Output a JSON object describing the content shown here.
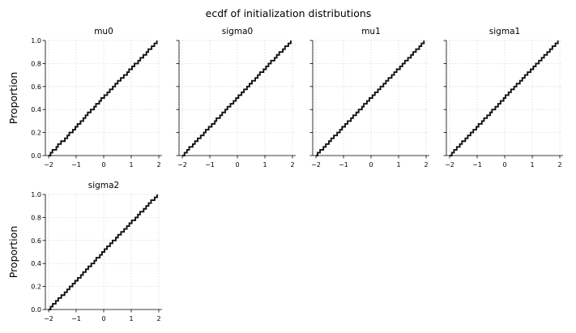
{
  "title": "ecdf of initialization distributions",
  "chart_data": {
    "type": "line",
    "title": "ecdf of initialization distributions",
    "ylabel": "Proportion",
    "xlabel": "",
    "xlim": [
      -2,
      2
    ],
    "ylim": [
      0,
      1
    ],
    "x_ticks": [
      "−2",
      "−1",
      "0",
      "1",
      "2"
    ],
    "y_ticks": [
      "0.0",
      "0.2",
      "0.4",
      "0.6",
      "0.8",
      "1.0"
    ],
    "grid": true,
    "series_color": "#111111",
    "grid_color": "#cfcfcf",
    "panels": [
      {
        "title": "mu0",
        "show_ylabel": true,
        "show_yticklabels": true,
        "x": [
          -1.93,
          -1.86,
          -1.72,
          -1.66,
          -1.55,
          -1.41,
          -1.32,
          -1.25,
          -1.12,
          -1.03,
          -0.95,
          -0.84,
          -0.74,
          -0.66,
          -0.58,
          -0.47,
          -0.35,
          -0.28,
          -0.16,
          -0.09,
          0.02,
          0.13,
          0.22,
          0.33,
          0.42,
          0.51,
          0.62,
          0.73,
          0.85,
          0.92,
          1.03,
          1.12,
          1.25,
          1.33,
          1.44,
          1.55,
          1.62,
          1.74,
          1.84,
          1.93
        ],
        "y": [
          0.025,
          0.05,
          0.075,
          0.1,
          0.125,
          0.15,
          0.175,
          0.2,
          0.225,
          0.25,
          0.275,
          0.3,
          0.325,
          0.35,
          0.375,
          0.4,
          0.425,
          0.45,
          0.475,
          0.5,
          0.525,
          0.55,
          0.575,
          0.6,
          0.625,
          0.65,
          0.675,
          0.7,
          0.725,
          0.75,
          0.775,
          0.8,
          0.825,
          0.85,
          0.875,
          0.9,
          0.925,
          0.95,
          0.975,
          1.0
        ]
      },
      {
        "title": "sigma0",
        "show_ylabel": false,
        "show_yticklabels": false,
        "x": [
          -1.92,
          -1.83,
          -1.75,
          -1.62,
          -1.54,
          -1.44,
          -1.33,
          -1.22,
          -1.15,
          -1.04,
          -0.93,
          -0.82,
          -0.76,
          -0.63,
          -0.55,
          -0.44,
          -0.36,
          -0.25,
          -0.14,
          -0.05,
          0.04,
          0.15,
          0.24,
          0.35,
          0.44,
          0.53,
          0.65,
          0.74,
          0.82,
          0.95,
          1.04,
          1.13,
          1.22,
          1.35,
          1.43,
          1.52,
          1.65,
          1.73,
          1.85,
          1.94
        ],
        "y": [
          0.025,
          0.05,
          0.075,
          0.1,
          0.125,
          0.15,
          0.175,
          0.2,
          0.225,
          0.25,
          0.275,
          0.3,
          0.325,
          0.35,
          0.375,
          0.4,
          0.425,
          0.45,
          0.475,
          0.5,
          0.525,
          0.55,
          0.575,
          0.6,
          0.625,
          0.65,
          0.675,
          0.7,
          0.725,
          0.75,
          0.775,
          0.8,
          0.825,
          0.85,
          0.875,
          0.9,
          0.925,
          0.95,
          0.975,
          1.0
        ]
      },
      {
        "title": "mu1",
        "show_ylabel": false,
        "show_yticklabels": false,
        "x": [
          -1.94,
          -1.85,
          -1.73,
          -1.64,
          -1.53,
          -1.45,
          -1.35,
          -1.23,
          -1.13,
          -1.05,
          -0.94,
          -0.85,
          -0.73,
          -0.65,
          -0.54,
          -0.45,
          -0.33,
          -0.26,
          -0.15,
          -0.06,
          0.05,
          0.14,
          0.25,
          0.34,
          0.45,
          0.54,
          0.63,
          0.75,
          0.84,
          0.93,
          1.05,
          1.14,
          1.23,
          1.34,
          1.45,
          1.53,
          1.63,
          1.75,
          1.83,
          1.92
        ],
        "y": [
          0.025,
          0.05,
          0.075,
          0.1,
          0.125,
          0.15,
          0.175,
          0.2,
          0.225,
          0.25,
          0.275,
          0.3,
          0.325,
          0.35,
          0.375,
          0.4,
          0.425,
          0.45,
          0.475,
          0.5,
          0.525,
          0.55,
          0.575,
          0.6,
          0.625,
          0.65,
          0.675,
          0.7,
          0.725,
          0.75,
          0.775,
          0.8,
          0.825,
          0.85,
          0.875,
          0.9,
          0.925,
          0.95,
          0.975,
          1.0
        ]
      },
      {
        "title": "sigma1",
        "show_ylabel": false,
        "show_yticklabels": false,
        "x": [
          -1.92,
          -1.84,
          -1.74,
          -1.63,
          -1.55,
          -1.43,
          -1.34,
          -1.24,
          -1.14,
          -1.03,
          -0.95,
          -0.83,
          -0.75,
          -0.64,
          -0.53,
          -0.46,
          -0.34,
          -0.24,
          -0.15,
          -0.04,
          0.03,
          0.14,
          0.23,
          0.34,
          0.43,
          0.55,
          0.64,
          0.73,
          0.83,
          0.94,
          1.04,
          1.13,
          1.24,
          1.34,
          1.43,
          1.54,
          1.64,
          1.73,
          1.84,
          1.93
        ],
        "y": [
          0.025,
          0.05,
          0.075,
          0.1,
          0.125,
          0.15,
          0.175,
          0.2,
          0.225,
          0.25,
          0.275,
          0.3,
          0.325,
          0.35,
          0.375,
          0.4,
          0.425,
          0.45,
          0.475,
          0.5,
          0.525,
          0.55,
          0.575,
          0.6,
          0.625,
          0.65,
          0.675,
          0.7,
          0.725,
          0.75,
          0.775,
          0.8,
          0.825,
          0.85,
          0.875,
          0.9,
          0.925,
          0.95,
          0.975,
          1.0
        ]
      },
      {
        "title": "sigma2",
        "show_ylabel": true,
        "show_yticklabels": true,
        "x": [
          -1.93,
          -1.85,
          -1.74,
          -1.65,
          -1.54,
          -1.42,
          -1.33,
          -1.24,
          -1.13,
          -1.04,
          -0.94,
          -0.83,
          -0.75,
          -0.65,
          -0.56,
          -0.45,
          -0.34,
          -0.27,
          -0.14,
          -0.06,
          0.03,
          0.12,
          0.23,
          0.32,
          0.44,
          0.52,
          0.63,
          0.74,
          0.84,
          0.93,
          1.02,
          1.15,
          1.24,
          1.32,
          1.45,
          1.54,
          1.63,
          1.72,
          1.85,
          1.94
        ],
        "y": [
          0.025,
          0.05,
          0.075,
          0.1,
          0.125,
          0.15,
          0.175,
          0.2,
          0.225,
          0.25,
          0.275,
          0.3,
          0.325,
          0.35,
          0.375,
          0.4,
          0.425,
          0.45,
          0.475,
          0.5,
          0.525,
          0.55,
          0.575,
          0.6,
          0.625,
          0.65,
          0.675,
          0.7,
          0.725,
          0.75,
          0.775,
          0.8,
          0.825,
          0.85,
          0.875,
          0.9,
          0.925,
          0.95,
          0.975,
          1.0
        ]
      }
    ]
  }
}
